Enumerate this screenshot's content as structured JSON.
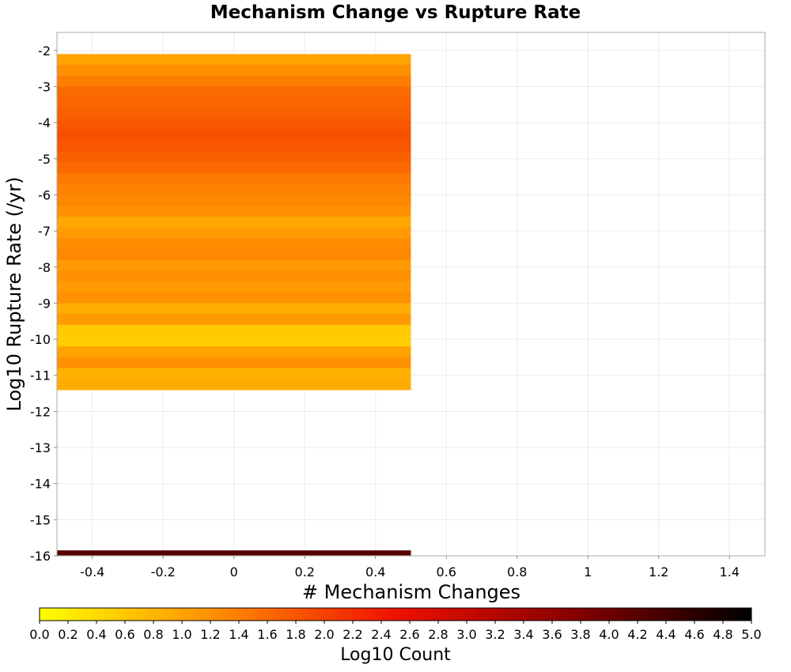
{
  "chart_data": {
    "type": "heatmap",
    "title": "Mechanism Change vs Rupture Rate",
    "xlabel": "# Mechanism Changes",
    "ylabel": "Log10 Rupture Rate (/yr)",
    "xlim": [
      -0.5,
      1.5
    ],
    "ylim": [
      -16.0,
      -1.5
    ],
    "x_ticks": [
      "-0.4",
      "-0.2",
      "0",
      "0.2",
      "0.4",
      "0.6",
      "0.8",
      "1",
      "1.2",
      "1.4"
    ],
    "x_tick_values": [
      -0.4,
      -0.2,
      0,
      0.2,
      0.4,
      0.6,
      0.8,
      1.0,
      1.2,
      1.4
    ],
    "y_ticks": [
      "-2",
      "-3",
      "-4",
      "-5",
      "-6",
      "-7",
      "-8",
      "-9",
      "-10",
      "-11",
      "-12",
      "-13",
      "-14",
      "-15",
      "-16"
    ],
    "y_tick_values": [
      -2,
      -3,
      -4,
      -5,
      -6,
      -7,
      -8,
      -9,
      -10,
      -11,
      -12,
      -13,
      -14,
      -15,
      -16
    ],
    "grid": true,
    "cells": [
      {
        "x0": -0.5,
        "x1": 0.5,
        "y0": -2.1,
        "y1": -2.4,
        "value": 1.0
      },
      {
        "x0": -0.5,
        "x1": 0.5,
        "y0": -2.4,
        "y1": -2.7,
        "value": 1.2
      },
      {
        "x0": -0.5,
        "x1": 0.5,
        "y0": -2.7,
        "y1": -3.0,
        "value": 1.4
      },
      {
        "x0": -0.5,
        "x1": 0.5,
        "y0": -3.0,
        "y1": -3.3,
        "value": 1.6
      },
      {
        "x0": -0.5,
        "x1": 0.5,
        "y0": -3.3,
        "y1": -3.6,
        "value": 1.65
      },
      {
        "x0": -0.5,
        "x1": 0.5,
        "y0": -3.6,
        "y1": -3.9,
        "value": 1.7
      },
      {
        "x0": -0.5,
        "x1": 0.5,
        "y0": -3.9,
        "y1": -4.2,
        "value": 1.8
      },
      {
        "x0": -0.5,
        "x1": 0.5,
        "y0": -4.2,
        "y1": -4.5,
        "value": 1.85
      },
      {
        "x0": -0.5,
        "x1": 0.5,
        "y0": -4.5,
        "y1": -4.8,
        "value": 1.8
      },
      {
        "x0": -0.5,
        "x1": 0.5,
        "y0": -4.8,
        "y1": -5.1,
        "value": 1.7
      },
      {
        "x0": -0.5,
        "x1": 0.5,
        "y0": -5.1,
        "y1": -5.4,
        "value": 1.6
      },
      {
        "x0": -0.5,
        "x1": 0.5,
        "y0": -5.4,
        "y1": -5.7,
        "value": 1.45
      },
      {
        "x0": -0.5,
        "x1": 0.5,
        "y0": -5.7,
        "y1": -6.0,
        "value": 1.35
      },
      {
        "x0": -0.5,
        "x1": 0.5,
        "y0": -6.0,
        "y1": -6.3,
        "value": 1.3
      },
      {
        "x0": -0.5,
        "x1": 0.5,
        "y0": -6.3,
        "y1": -6.6,
        "value": 1.2
      },
      {
        "x0": -0.5,
        "x1": 0.5,
        "y0": -6.6,
        "y1": -6.9,
        "value": 0.95
      },
      {
        "x0": -0.5,
        "x1": 0.5,
        "y0": -6.9,
        "y1": -7.2,
        "value": 1.1
      },
      {
        "x0": -0.5,
        "x1": 0.5,
        "y0": -7.2,
        "y1": -7.5,
        "value": 1.25
      },
      {
        "x0": -0.5,
        "x1": 0.5,
        "y0": -7.5,
        "y1": -7.8,
        "value": 1.3
      },
      {
        "x0": -0.5,
        "x1": 0.5,
        "y0": -7.8,
        "y1": -8.1,
        "value": 1.1
      },
      {
        "x0": -0.5,
        "x1": 0.5,
        "y0": -8.1,
        "y1": -8.4,
        "value": 1.2
      },
      {
        "x0": -0.5,
        "x1": 0.5,
        "y0": -8.4,
        "y1": -8.7,
        "value": 1.1
      },
      {
        "x0": -0.5,
        "x1": 0.5,
        "y0": -8.7,
        "y1": -9.0,
        "value": 1.2
      },
      {
        "x0": -0.5,
        "x1": 0.5,
        "y0": -9.0,
        "y1": -9.3,
        "value": 0.9
      },
      {
        "x0": -0.5,
        "x1": 0.5,
        "y0": -9.3,
        "y1": -9.6,
        "value": 1.1
      },
      {
        "x0": -0.5,
        "x1": 0.5,
        "y0": -9.6,
        "y1": -9.9,
        "value": 0.6
      },
      {
        "x0": -0.5,
        "x1": 0.5,
        "y0": -9.9,
        "y1": -10.2,
        "value": 0.55
      },
      {
        "x0": -0.5,
        "x1": 0.5,
        "y0": -10.2,
        "y1": -10.5,
        "value": 1.0
      },
      {
        "x0": -0.5,
        "x1": 0.5,
        "y0": -10.5,
        "y1": -10.8,
        "value": 1.2
      },
      {
        "x0": -0.5,
        "x1": 0.5,
        "y0": -10.8,
        "y1": -11.1,
        "value": 0.85
      },
      {
        "x0": -0.5,
        "x1": 0.5,
        "y0": -11.1,
        "y1": -11.4,
        "value": 0.9
      },
      {
        "x0": -0.5,
        "x1": 0.5,
        "y0": -15.85,
        "y1": -16.0,
        "value": 4.2
      }
    ],
    "colorbar": {
      "label": "Log10 Count",
      "min": 0.0,
      "max": 5.0,
      "ticks": [
        "0.0",
        "0.2",
        "0.4",
        "0.6",
        "0.8",
        "1.0",
        "1.2",
        "1.4",
        "1.6",
        "1.8",
        "2.0",
        "2.2",
        "2.4",
        "2.6",
        "2.8",
        "3.0",
        "3.2",
        "3.4",
        "3.6",
        "3.8",
        "4.0",
        "4.2",
        "4.4",
        "4.6",
        "4.8",
        "5.0"
      ],
      "colors": [
        "#ffff00",
        "#ff8c00",
        "#ee1100",
        "#880000",
        "#000000"
      ]
    }
  }
}
